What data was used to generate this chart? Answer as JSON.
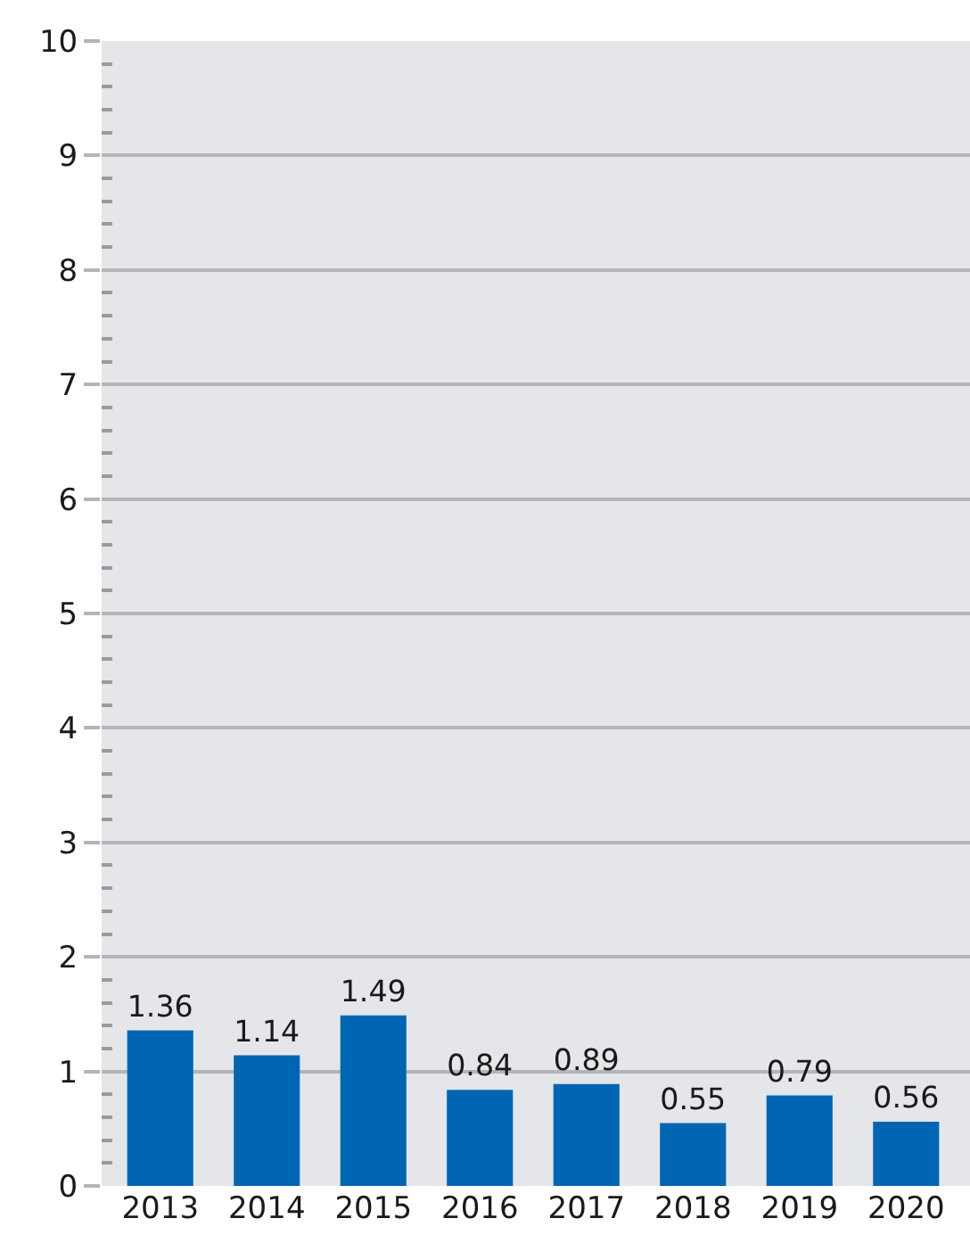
{
  "chart_data": {
    "type": "bar",
    "categories": [
      "2013",
      "2014",
      "2015",
      "2016",
      "2017",
      "2018",
      "2019",
      "2020"
    ],
    "values": [
      1.36,
      1.14,
      1.49,
      0.84,
      0.89,
      0.55,
      0.79,
      0.56
    ],
    "color": "#0066b3",
    "ylim": [
      0,
      10
    ],
    "yticks": [
      0,
      {
        "value": 0.2,
        "label": null
      },
      {
        "value": 0.4,
        "label": null
      },
      {
        "value": 0.6,
        "label": null
      },
      {
        "value": 0.8,
        "label": null
      },
      1,
      {
        "value": 1.2,
        "label": null
      },
      {
        "value": 1.4,
        "label": null
      },
      {
        "value": 1.6,
        "label": null
      },
      {
        "value": 1.8,
        "label": null
      },
      2,
      {
        "value": 2.2,
        "label": null
      },
      {
        "value": 2.4,
        "label": null
      },
      {
        "value": 2.6,
        "label": null
      },
      {
        "value": 2.8,
        "label": null
      },
      3,
      {
        "value": 3.2,
        "label": null
      },
      {
        "value": 3.4,
        "label": null
      },
      {
        "value": 3.6,
        "label": null
      },
      {
        "value": 3.8,
        "label": null
      },
      4,
      {
        "value": 4.2,
        "label": null
      },
      {
        "value": 4.4,
        "label": null
      },
      {
        "value": 4.6,
        "label": null
      },
      {
        "value": 4.8,
        "label": null
      },
      5,
      {
        "value": 5.2,
        "label": null
      },
      {
        "value": 5.4,
        "label": null
      },
      {
        "value": 5.6,
        "label": null
      },
      {
        "value": 5.8,
        "label": null
      },
      6,
      {
        "value": 6.2,
        "label": null
      },
      {
        "value": 6.4,
        "label": null
      },
      {
        "value": 6.6,
        "label": null
      },
      {
        "value": 6.8,
        "label": null
      },
      7,
      {
        "value": 7.2,
        "label": null
      },
      {
        "value": 7.4,
        "label": null
      },
      {
        "value": 7.6,
        "label": null
      },
      {
        "value": 7.8,
        "label": null
      },
      8,
      {
        "value": 8.2,
        "label": null
      },
      {
        "value": 8.4,
        "label": null
      },
      {
        "value": 8.6,
        "label": null
      },
      {
        "value": 8.8,
        "label": null
      },
      9,
      {
        "value": 9.2,
        "label": null
      },
      {
        "value": 9.4,
        "label": null
      },
      {
        "value": 9.6,
        "label": null
      },
      {
        "value": 9.8,
        "label": null
      },
      10
    ],
    "grid": "y",
    "data_labels": true
  }
}
